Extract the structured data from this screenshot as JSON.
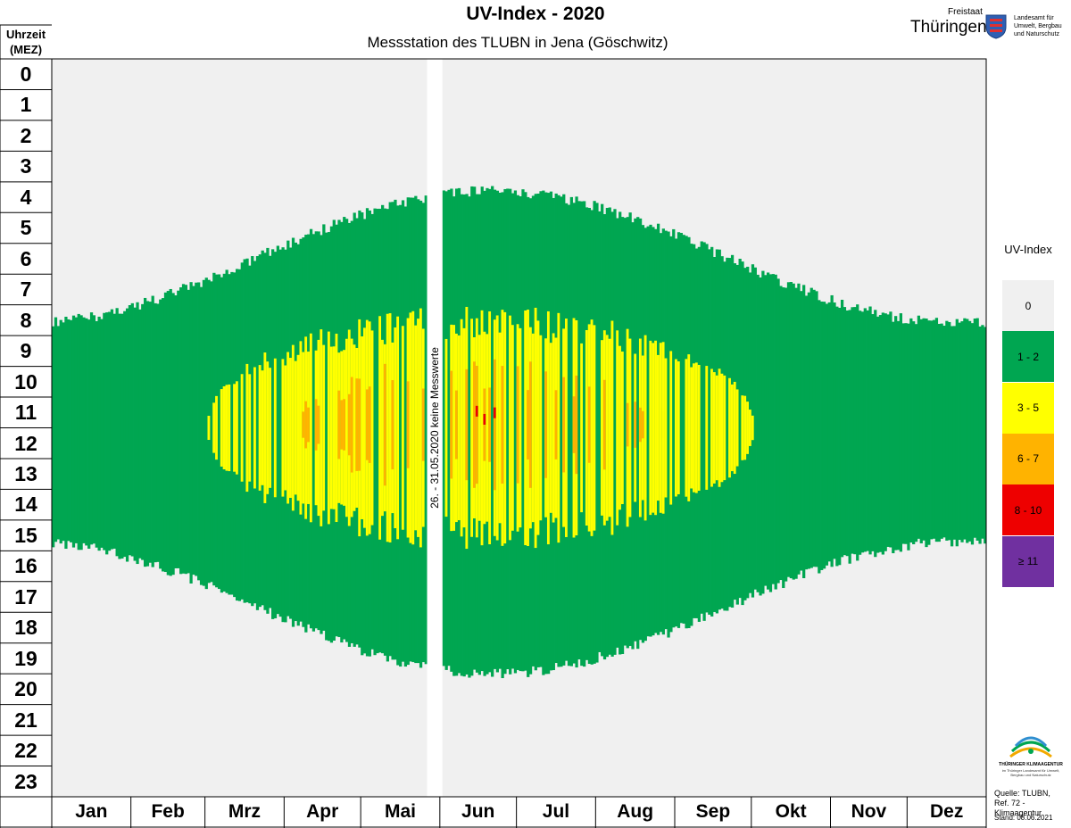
{
  "header": {
    "title": "UV-Index - 2020",
    "subtitle": "Messstation des TLUBN in Jena (Göschwitz)"
  },
  "logo": {
    "state_small": "Freistaat",
    "state_name": "Thüringen",
    "agency_line1": "Landesamt für",
    "agency_line2": "Umwelt, Bergbau",
    "agency_line3": "und Naturschutz"
  },
  "chart_data": {
    "type": "heatmap",
    "title": "UV-Index - 2020",
    "subtitle": "Messstation des TLUBN in Jena (Göschwitz)",
    "ylabel_line1": "Uhrzeit",
    "ylabel_line2": "(MEZ)",
    "y_hours": [
      "0",
      "1",
      "2",
      "3",
      "4",
      "5",
      "6",
      "7",
      "8",
      "9",
      "10",
      "11",
      "12",
      "13",
      "14",
      "15",
      "16",
      "17",
      "18",
      "19",
      "20",
      "21",
      "22",
      "23"
    ],
    "x_months": [
      "Jan",
      "Feb",
      "Mrz",
      "Apr",
      "Mai",
      "Jun",
      "Jul",
      "Aug",
      "Sep",
      "Okt",
      "Nov",
      "Dez"
    ],
    "days_in_year": 366,
    "gap": {
      "start_day": 147,
      "end_day": 152,
      "label": "26. - 31.05.2020  keine Messwerte"
    },
    "legend_title": "UV-Index",
    "legend": [
      {
        "label": "0",
        "color": "#f0f0f0"
      },
      {
        "label": "1 - 2",
        "color": "#00a651"
      },
      {
        "label": "3 - 5",
        "color": "#ffff00"
      },
      {
        "label": "6 - 7",
        "color": "#ffb300"
      },
      {
        "label": "8 - 10",
        "color": "#ee0000"
      },
      {
        "label": "≥ 11",
        "color": "#7030a0"
      }
    ],
    "green_start_hour": {
      "winter": 8.6,
      "summer": 4.3
    },
    "green_end_hour": {
      "winter": 15.7,
      "summer": 20.0
    },
    "yellow_start_hour": {
      "peak": 8.2
    },
    "yellow_end_hour": {
      "peak": 15.8
    },
    "yellow_days": {
      "start": 60,
      "end": 275
    },
    "orange_days": {
      "start": 95,
      "end": 232
    },
    "red_days": {
      "start": 165,
      "end": 180
    }
  },
  "footer": {
    "klima_name": "THÜRINGER KLIMAAGENTUR",
    "klima_sub": "im Thüringer Landesamt für Umwelt, Bergbau und Naturschutz",
    "source_line1": "Quelle: TLUBN,",
    "source_line2": "Ref. 72 - Klimaagentur",
    "stand": "Stand: 08.06.2021"
  }
}
